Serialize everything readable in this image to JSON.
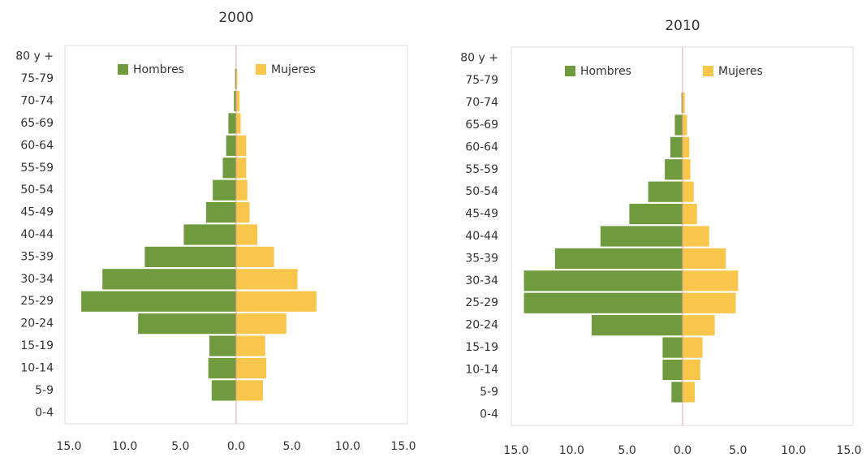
{
  "chart_data": [
    {
      "type": "pyramid",
      "title": "2000",
      "categories": [
        "0-4",
        "5-9",
        "10-14",
        "15-19",
        "20-24",
        "25-29",
        "30-34",
        "35-39",
        "40-44",
        "45-49",
        "50-54",
        "55-59",
        "60-64",
        "65-69",
        "70-74",
        "75-79",
        "80 y +"
      ],
      "series": [
        {
          "name": "Hombres",
          "color": "#6f9a3e",
          "values": [
            0,
            -2.2,
            -2.5,
            -2.4,
            -8.8,
            -13.9,
            -12.0,
            -8.2,
            -4.7,
            -2.7,
            -2.1,
            -1.2,
            -0.9,
            -0.7,
            -0.2,
            -0.1,
            0
          ]
        },
        {
          "name": "Mujeres",
          "color": "#f8c64a",
          "values": [
            0,
            2.4,
            2.7,
            2.6,
            4.5,
            7.2,
            5.5,
            3.4,
            1.9,
            1.2,
            1.0,
            0.9,
            0.9,
            0.4,
            0.3,
            0.1,
            0
          ]
        }
      ],
      "xlim": [
        -15,
        15
      ],
      "xticks": [
        {
          "value": -15,
          "label": "15.0"
        },
        {
          "value": -10,
          "label": "10.0"
        },
        {
          "value": -5,
          "label": "5.0"
        },
        {
          "value": 0,
          "label": "0.0"
        },
        {
          "value": 5,
          "label": "5.0"
        },
        {
          "value": 10,
          "label": "10.0"
        },
        {
          "value": 15,
          "label": "15.0"
        }
      ]
    },
    {
      "type": "pyramid",
      "title": "2010",
      "categories": [
        "0-4",
        "5-9",
        "10-14",
        "15-19",
        "20-24",
        "25-29",
        "30-34",
        "35-39",
        "40-44",
        "45-49",
        "50-54",
        "55-59",
        "60-64",
        "65-69",
        "70-74",
        "75-79",
        "80 y +"
      ],
      "series": [
        {
          "name": "Hombres",
          "color": "#6f9a3e",
          "values": [
            0,
            -1.0,
            -1.8,
            -1.8,
            -8.2,
            -14.3,
            -14.3,
            -11.5,
            -7.4,
            -4.8,
            -3.1,
            -1.6,
            -1.1,
            -0.7,
            -0.1,
            0,
            0
          ]
        },
        {
          "name": "Mujeres",
          "color": "#f8c64a",
          "values": [
            0,
            1.1,
            1.6,
            1.8,
            2.9,
            4.8,
            5.0,
            3.9,
            2.4,
            1.3,
            1.0,
            0.7,
            0.6,
            0.4,
            0.2,
            0,
            0
          ]
        }
      ],
      "xlim": [
        -15,
        15
      ],
      "xticks": [
        {
          "value": -15,
          "label": "15.0"
        },
        {
          "value": -10,
          "label": "10.0"
        },
        {
          "value": -5,
          "label": "5.0"
        },
        {
          "value": 0,
          "label": "0.0"
        },
        {
          "value": 5,
          "label": "5.0"
        },
        {
          "value": 10,
          "label": "10.0"
        },
        {
          "value": 15,
          "label": "15.0"
        }
      ]
    }
  ]
}
